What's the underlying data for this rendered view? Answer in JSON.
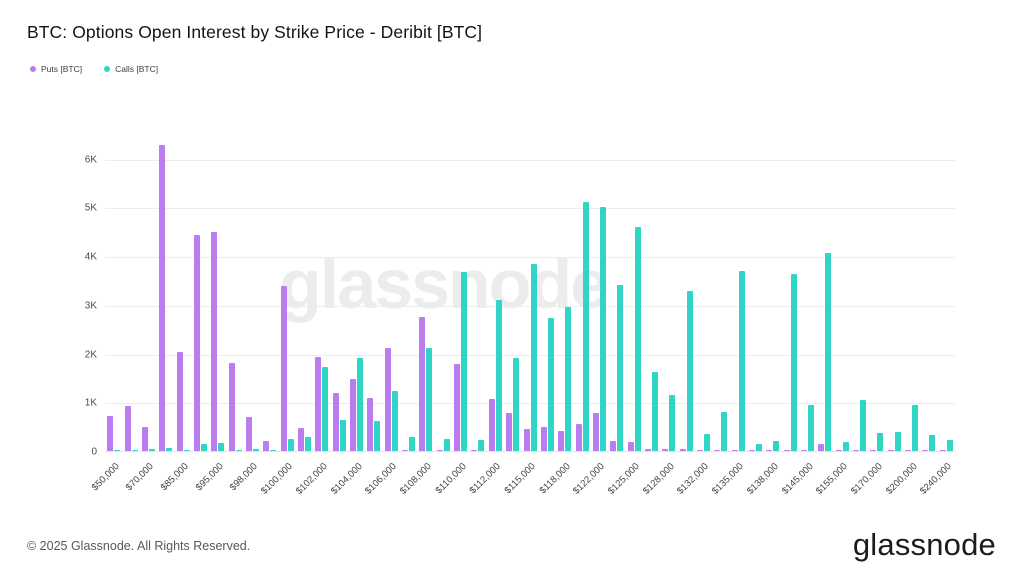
{
  "title": "BTC: Options Open Interest by Strike Price - Deribit [BTC]",
  "legend": {
    "puts_label": "Puts [BTC]",
    "calls_label": "Calls [BTC]"
  },
  "colors": {
    "puts": "#ba7cf0",
    "calls": "#2fd5c5",
    "grid": "#ededed",
    "axis_text": "#4a4d52",
    "watermark": "#e9e9e9"
  },
  "watermark_text": "glassnode",
  "footer": {
    "copyright": "© 2025 Glassnode. All Rights Reserved.",
    "brand": "glassnode"
  },
  "chart_data": {
    "type": "bar",
    "title": "BTC: Options Open Interest by Strike Price - Deribit [BTC]",
    "xlabel": "",
    "ylabel": "",
    "ylim": [
      0,
      6400
    ],
    "yticks": [
      "0",
      "1K",
      "2K",
      "3K",
      "4K",
      "5K",
      "6K"
    ],
    "ytick_values": [
      0,
      1000,
      2000,
      3000,
      4000,
      5000,
      6000
    ],
    "grid": true,
    "legend_position": "top-left",
    "categories": [
      "$50,000",
      "",
      "$70,000",
      "",
      "$85,000",
      "",
      "$95,000",
      "",
      "$98,000",
      "",
      "$100,000",
      "",
      "$102,000",
      "",
      "$104,000",
      "",
      "$106,000",
      "",
      "$108,000",
      "",
      "$110,000",
      "",
      "$112,000",
      "",
      "$115,000",
      "",
      "$118,000",
      "",
      "$122,000",
      "",
      "$125,000",
      "",
      "$128,000",
      "",
      "$132,000",
      "",
      "$135,000",
      "",
      "$138,000",
      "",
      "$145,000",
      "",
      "$155,000",
      "",
      "$170,000",
      "",
      "$200,000",
      "",
      "$240,000"
    ],
    "series": [
      {
        "name": "Puts [BTC]",
        "color": "#ba7cf0",
        "values": [
          720,
          930,
          500,
          6270,
          2030,
          4430,
          4500,
          1800,
          700,
          200,
          3390,
          480,
          1920,
          1200,
          1470,
          1080,
          2120,
          30,
          2750,
          30,
          1780,
          30,
          1060,
          790,
          450,
          500,
          420,
          560,
          780,
          200,
          180,
          50,
          40,
          50,
          20,
          20,
          30,
          10,
          10,
          20,
          10,
          150,
          10,
          10,
          10,
          10,
          20,
          10,
          10
        ]
      },
      {
        "name": "Calls [BTC]",
        "color": "#2fd5c5",
        "values": [
          20,
          30,
          50,
          70,
          20,
          150,
          170,
          30,
          40,
          30,
          240,
          290,
          1730,
          640,
          1900,
          620,
          1230,
          290,
          2120,
          240,
          3680,
          220,
          3090,
          1910,
          3840,
          2730,
          2950,
          5110,
          5010,
          3400,
          4600,
          1630,
          1140,
          3280,
          340,
          800,
          3700,
          150,
          200,
          3630,
          950,
          4070,
          180,
          1050,
          360,
          390,
          950,
          330,
          220
        ]
      }
    ]
  }
}
